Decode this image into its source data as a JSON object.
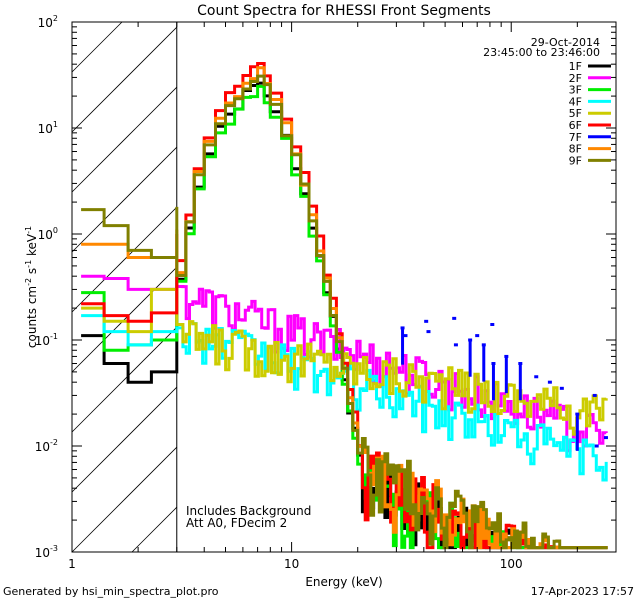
{
  "chart_data": {
    "type": "line",
    "title": "Count Spectra for RHESSI Front Segments",
    "xlabel": "Energy (keV)",
    "ylabel_parts": {
      "base": "counts cm",
      "exp1": "-2",
      "mid": " s",
      "exp2": "-1",
      "unit": " keV",
      "exp3": "-1"
    },
    "xscale": "log",
    "yscale": "log",
    "xlim": [
      1,
      300
    ],
    "ylim": [
      0.001,
      100
    ],
    "x_ticks": [
      {
        "value": 1,
        "label": "1"
      },
      {
        "value": 10,
        "label": "10"
      },
      {
        "value": 100,
        "label": "100"
      }
    ],
    "y_ticks": [
      {
        "value": 0.001,
        "base": "10",
        "exp": "-3"
      },
      {
        "value": 0.01,
        "base": "10",
        "exp": "-2"
      },
      {
        "value": 0.1,
        "base": "10",
        "exp": "-1"
      },
      {
        "value": 1,
        "base": "10",
        "exp": "0"
      },
      {
        "value": 10,
        "base": "10",
        "exp": "1"
      },
      {
        "value": 100,
        "base": "10",
        "exp": "2"
      }
    ],
    "excluded_region": {
      "from": 1,
      "to": 3
    },
    "date": "29-Oct-2014",
    "time_range": "23:45:00 to 23:46:00",
    "annotations": [
      "Includes Background",
      "Att A0, FDecim 2"
    ],
    "legend_position": "top-right",
    "series": [
      {
        "name": "1F",
        "color": "#000000",
        "low": [
          0.11,
          0.06,
          0.04,
          0.05,
          0.4
        ],
        "peak_scale": 0.75,
        "tail_scale": 0.85,
        "tail_kind": "steep"
      },
      {
        "name": "2F",
        "color": "#ff00ff",
        "low": [
          0.4,
          0.38,
          0.3,
          0.3,
          0.32
        ],
        "flat": true,
        "flat_level": 0.28,
        "flat_end": 0.012
      },
      {
        "name": "3F",
        "color": "#00ee00",
        "low": [
          0.28,
          0.08,
          0.09,
          0.1,
          0.45
        ],
        "peak_scale": 0.66,
        "tail_scale": 0.8,
        "tail_kind": "steep"
      },
      {
        "name": "4F",
        "color": "#00ffff",
        "low": [
          0.17,
          0.12,
          0.09,
          0.12,
          0.13
        ],
        "flat": true,
        "flat_level": 0.13,
        "flat_end": 0.007
      },
      {
        "name": "5F",
        "color": "#cccc00",
        "low": [
          0.2,
          0.15,
          0.12,
          0.3,
          0.14
        ],
        "flat": true,
        "flat_level": 0.11,
        "flat_end": 0.02
      },
      {
        "name": "6F",
        "color": "#ff0000",
        "low": [
          0.22,
          0.17,
          0.15,
          0.18,
          1.0
        ],
        "peak_scale": 1.1,
        "tail_scale": 1.0,
        "tail_kind": "steep"
      },
      {
        "name": "7F",
        "color": "#0000ff",
        "sparse": true,
        "points": [
          [
            32,
            0.13
          ],
          [
            33,
            0.11
          ],
          [
            41,
            0.15
          ],
          [
            42,
            0.12
          ],
          [
            55,
            0.16
          ],
          [
            56,
            0.09
          ],
          [
            65,
            0.1
          ],
          [
            70,
            0.11
          ],
          [
            75,
            0.09
          ],
          [
            82,
            0.14
          ],
          [
            83,
            0.06
          ],
          [
            95,
            0.07
          ],
          [
            110,
            0.06
          ],
          [
            130,
            0.045
          ],
          [
            150,
            0.04
          ],
          [
            170,
            0.035
          ],
          [
            200,
            0.02
          ],
          [
            240,
            0.03
          ],
          [
            245,
            0.01
          ],
          [
            270,
            0.012
          ]
        ]
      },
      {
        "name": "8F",
        "color": "#ff8800",
        "low": [
          0.8,
          0.8,
          0.6,
          0.6,
          1.1
        ],
        "peak_scale": 0.95,
        "tail_scale": 1.1,
        "tail_kind": "steep"
      },
      {
        "name": "9F",
        "color": "#808000",
        "low": [
          1.7,
          1.2,
          0.7,
          0.6,
          1.8
        ],
        "peak_scale": 0.85,
        "tail_scale": 1.2,
        "tail_kind": "steep"
      }
    ]
  },
  "footer": {
    "generated_by": "Generated by hsi_min_spectra_plot.pro",
    "timestamp": "17-Apr-2023 17:57"
  }
}
